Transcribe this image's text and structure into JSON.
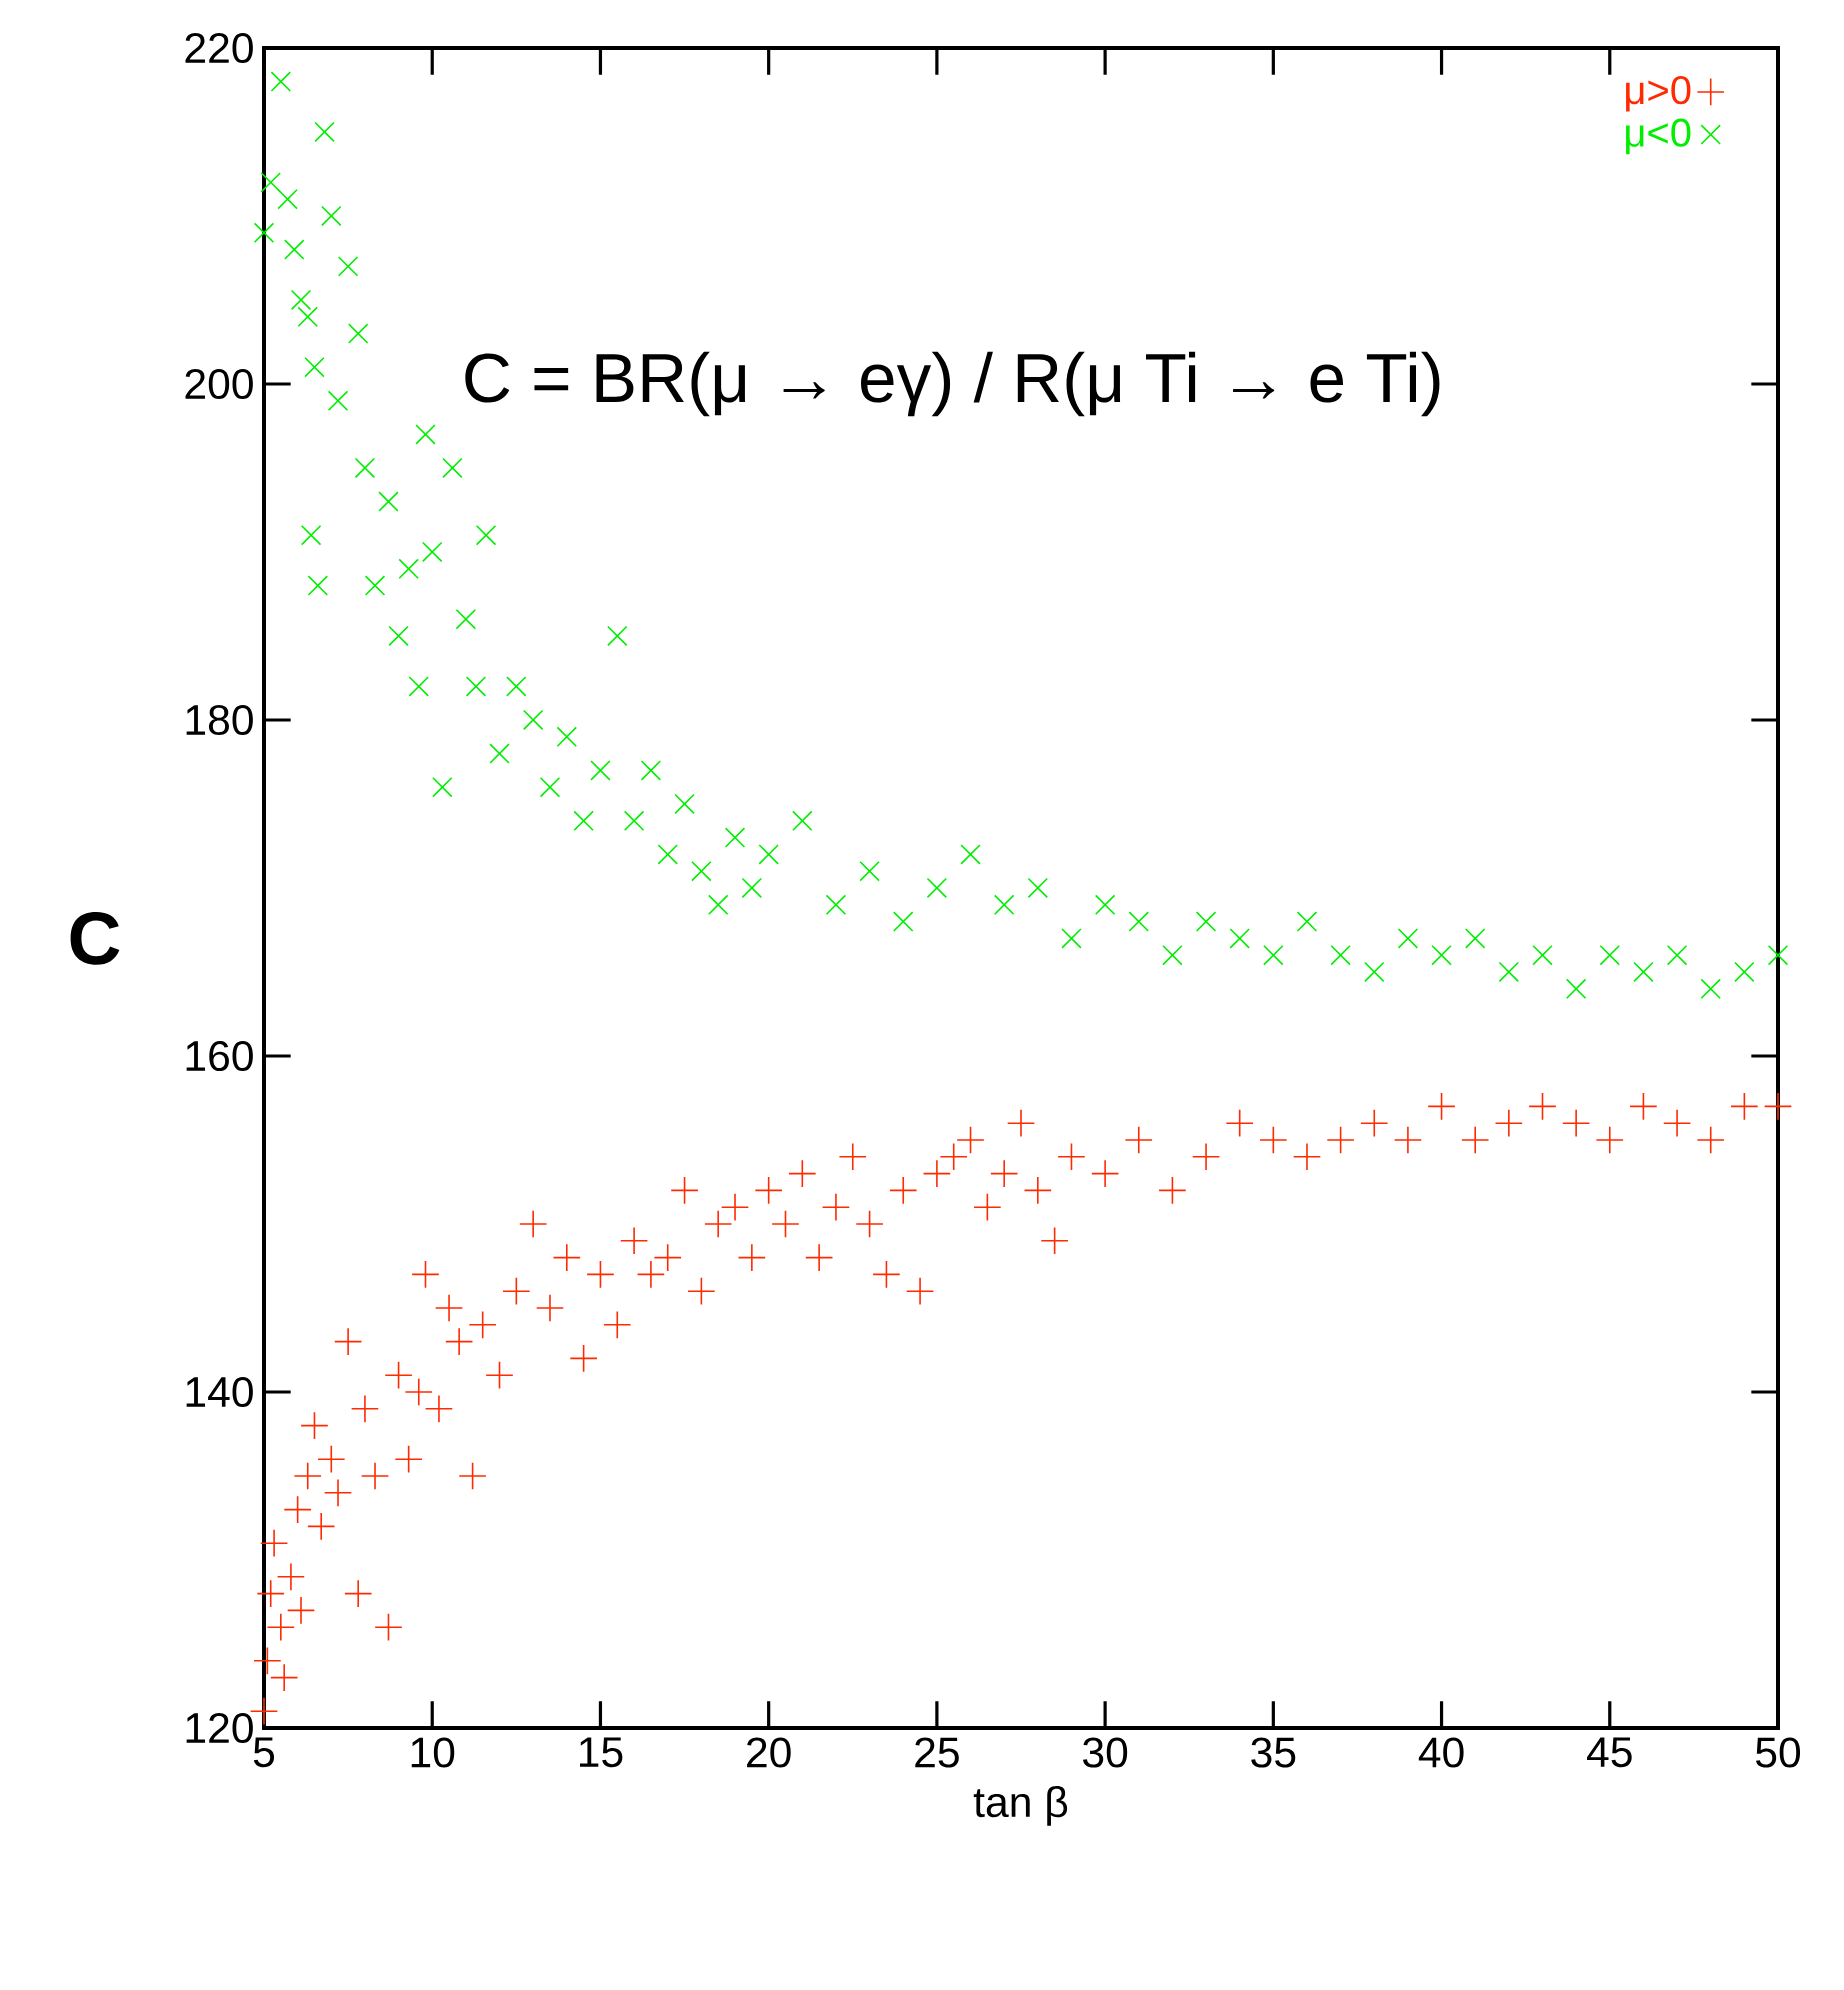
{
  "chart_data": {
    "type": "scatter",
    "xlabel": "tan β",
    "ylabel": "C",
    "annotations": [
      "C = BR(μ → eγ) / R(μ Ti → e Ti)"
    ],
    "xlim": [
      5,
      50
    ],
    "ylim": [
      120,
      220
    ],
    "xticks": [
      5,
      10,
      15,
      20,
      25,
      30,
      35,
      40,
      45,
      50
    ],
    "yticks": [
      120,
      140,
      160,
      180,
      200,
      220
    ],
    "grid": false,
    "legend": "top right",
    "marker": "cross",
    "series": [
      {
        "name": "μ>0",
        "color": "#ff2a00",
        "x": [
          5.0,
          5.1,
          5.2,
          5.3,
          5.5,
          5.6,
          5.8,
          6.0,
          6.1,
          6.3,
          6.5,
          6.7,
          7.0,
          7.2,
          7.5,
          7.8,
          8.0,
          8.3,
          8.7,
          9.0,
          9.3,
          9.6,
          9.8,
          10.2,
          10.5,
          10.8,
          11.2,
          11.5,
          12.0,
          12.5,
          13.0,
          13.5,
          14.0,
          14.5,
          15.0,
          15.5,
          16.0,
          16.5,
          17.0,
          17.5,
          18.0,
          18.5,
          19.0,
          19.5,
          20.0,
          20.5,
          21.0,
          21.5,
          22.0,
          22.5,
          23.0,
          23.5,
          24.0,
          24.5,
          25.0,
          25.5,
          26.0,
          26.5,
          27.0,
          27.5,
          28.0,
          28.5,
          29.0,
          30.0,
          31.0,
          32.0,
          33.0,
          34.0,
          35.0,
          36.0,
          37.0,
          38.0,
          39.0,
          40.0,
          41.0,
          42.0,
          43.0,
          44.0,
          45.0,
          46.0,
          47.0,
          48.0,
          49.0,
          50.0
        ],
        "values": [
          121,
          124,
          128,
          131,
          126,
          123,
          129,
          133,
          127,
          135,
          138,
          132,
          136,
          134,
          143,
          128,
          139,
          135,
          126,
          141,
          136,
          140,
          147,
          139,
          145,
          143,
          135,
          144,
          141,
          146,
          150,
          145,
          148,
          142,
          147,
          144,
          149,
          147,
          148,
          152,
          146,
          150,
          151,
          148,
          152,
          150,
          153,
          148,
          151,
          154,
          150,
          147,
          152,
          146,
          153,
          154,
          155,
          151,
          153,
          156,
          152,
          149,
          154,
          153,
          155,
          152,
          154,
          156,
          155,
          154,
          155,
          156,
          155,
          157,
          155,
          156,
          157,
          156,
          155,
          157,
          156,
          155,
          157,
          157
        ]
      },
      {
        "name": "μ<0",
        "color": "#00ee00",
        "x": [
          5.0,
          5.2,
          5.5,
          5.7,
          5.9,
          6.1,
          6.3,
          6.5,
          6.8,
          7.0,
          7.2,
          7.5,
          7.8,
          6.4,
          6.6,
          8.0,
          8.3,
          8.7,
          9.0,
          9.3,
          9.6,
          9.8,
          10.0,
          10.3,
          10.6,
          11.0,
          11.3,
          11.6,
          12.0,
          12.5,
          13.0,
          13.5,
          14.0,
          14.5,
          15.0,
          15.5,
          16.0,
          16.5,
          17.0,
          17.5,
          18.0,
          18.5,
          19.0,
          19.5,
          20.0,
          21.0,
          22.0,
          23.0,
          24.0,
          25.0,
          26.0,
          27.0,
          28.0,
          29.0,
          30.0,
          31.0,
          32.0,
          33.0,
          34.0,
          35.0,
          36.0,
          37.0,
          38.0,
          39.0,
          40.0,
          41.0,
          42.0,
          43.0,
          44.0,
          45.0,
          46.0,
          47.0,
          48.0,
          49.0,
          50.0
        ],
        "values": [
          209,
          212,
          218,
          211,
          208,
          205,
          204,
          201,
          215,
          210,
          199,
          207,
          203,
          191,
          188,
          195,
          188,
          193,
          185,
          189,
          182,
          197,
          190,
          176,
          195,
          186,
          182,
          191,
          178,
          182,
          180,
          176,
          179,
          174,
          177,
          185,
          174,
          177,
          172,
          175,
          171,
          169,
          173,
          170,
          172,
          174,
          169,
          171,
          168,
          170,
          172,
          169,
          170,
          167,
          169,
          168,
          166,
          168,
          167,
          166,
          168,
          166,
          165,
          167,
          166,
          167,
          165,
          166,
          164,
          166,
          165,
          166,
          164,
          165,
          166
        ]
      }
    ]
  }
}
